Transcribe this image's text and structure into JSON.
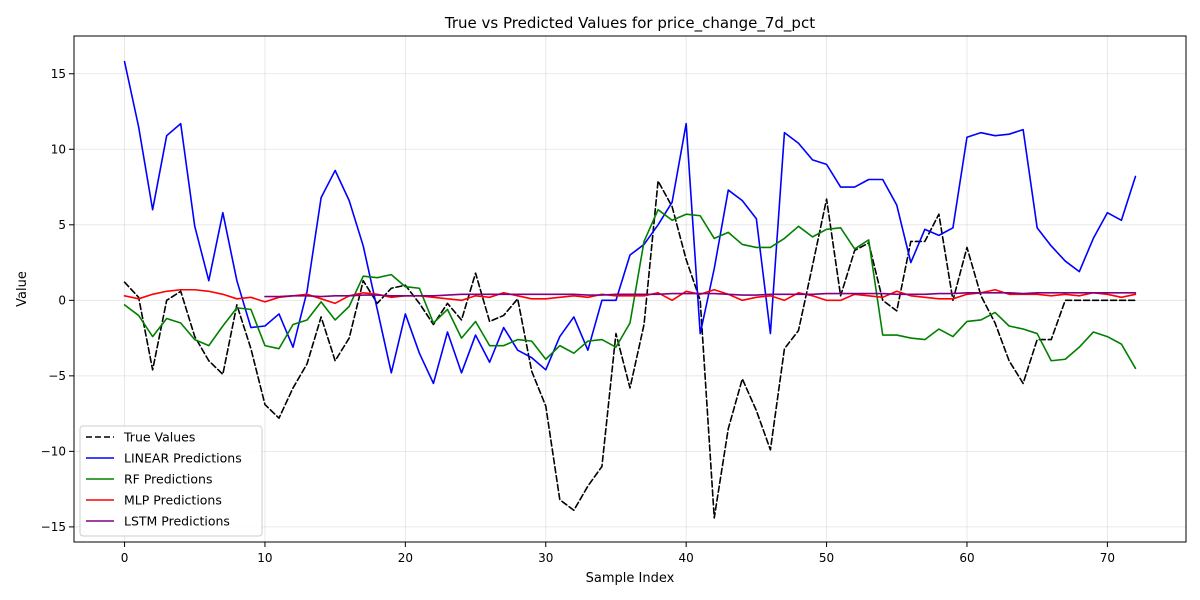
{
  "chart_data": {
    "type": "line",
    "title": "True vs Predicted Values for price_change_7d_pct",
    "xlabel": "Sample Index",
    "ylabel": "Value",
    "xlim": [
      -3.6,
      75.6
    ],
    "ylim": [
      -16.0,
      17.5
    ],
    "xticks": [
      0,
      10,
      20,
      30,
      40,
      50,
      60,
      70
    ],
    "yticks": [
      -15,
      -10,
      -5,
      0,
      5,
      10,
      15
    ],
    "grid": true,
    "legend_position": "lower-left",
    "series": [
      {
        "name": "True Values",
        "color": "#000000",
        "dashed": true,
        "x_start": 0,
        "values": [
          1.2,
          0.2,
          -4.6,
          0.0,
          0.6,
          -2.4,
          -4.0,
          -4.9,
          -0.3,
          -3.2,
          -6.9,
          -7.8,
          -5.8,
          -4.2,
          -1.1,
          -4.0,
          -2.5,
          1.3,
          -0.2,
          0.8,
          1.0,
          -0.2,
          -1.6,
          -0.2,
          -1.3,
          1.8,
          -1.4,
          -1.0,
          0.1,
          -4.7,
          -7.0,
          -13.2,
          -13.9,
          -12.3,
          -11.0,
          -2.2,
          -5.8,
          -1.6,
          7.9,
          6.2,
          2.7,
          0.0,
          -14.4,
          -8.5,
          -5.2,
          -7.3,
          -9.9,
          -3.2,
          -2.0,
          2.3,
          6.7,
          0.3,
          3.3,
          3.8,
          0.0,
          -0.7,
          3.9,
          3.9,
          5.7,
          0.0,
          3.5,
          0.3,
          -1.5,
          -4.0,
          -5.5,
          -2.6,
          -2.6,
          0.0,
          0.0,
          0.0,
          0.0,
          0.0,
          0.0
        ]
      },
      {
        "name": "LINEAR Predictions",
        "color": "#0000ff",
        "dashed": false,
        "x_start": 0,
        "values": [
          15.8,
          11.5,
          6.0,
          10.9,
          11.7,
          4.9,
          1.3,
          5.8,
          1.3,
          -1.8,
          -1.7,
          -0.9,
          -3.1,
          0.6,
          6.8,
          8.6,
          6.6,
          3.6,
          -0.6,
          -4.8,
          -0.9,
          -3.5,
          -5.5,
          -2.1,
          -4.8,
          -2.3,
          -4.1,
          -1.8,
          -3.3,
          -3.8,
          -4.6,
          -2.4,
          -1.1,
          -3.3,
          0.0,
          0.0,
          3.0,
          3.7,
          5.0,
          6.5,
          11.7,
          -2.2,
          2.1,
          7.3,
          6.6,
          5.4,
          -2.2,
          11.1,
          10.4,
          9.3,
          9.0,
          7.5,
          7.5,
          8.0,
          8.0,
          6.3,
          2.5,
          4.7,
          4.3,
          4.8,
          10.8,
          11.1,
          10.9,
          11.0,
          11.3,
          4.8,
          3.6,
          2.6,
          1.9,
          4.1,
          5.8,
          5.3,
          8.2
        ]
      },
      {
        "name": "RF Predictions",
        "color": "#008000",
        "dashed": false,
        "x_start": 0,
        "values": [
          -0.3,
          -1.0,
          -2.4,
          -1.2,
          -1.5,
          -2.6,
          -3.0,
          -1.7,
          -0.5,
          -0.6,
          -3.0,
          -3.2,
          -1.6,
          -1.3,
          -0.1,
          -1.3,
          -0.4,
          1.6,
          1.5,
          1.7,
          0.9,
          0.8,
          -1.5,
          -0.6,
          -2.5,
          -1.4,
          -3.0,
          -3.0,
          -2.6,
          -2.7,
          -3.9,
          -3.0,
          -3.5,
          -2.7,
          -2.6,
          -3.1,
          -1.5,
          3.9,
          6.0,
          5.3,
          5.7,
          5.6,
          4.1,
          4.5,
          3.7,
          3.5,
          3.5,
          4.1,
          4.9,
          4.2,
          4.7,
          4.8,
          3.4,
          4.0,
          -2.3,
          -2.3,
          -2.5,
          -2.6,
          -1.9,
          -2.4,
          -1.4,
          -1.3,
          -0.8,
          -1.7,
          -1.9,
          -2.2,
          -4.0,
          -3.9,
          -3.1,
          -2.1,
          -2.4,
          -2.9,
          -4.5
        ]
      },
      {
        "name": "MLP Predictions",
        "color": "#ff0000",
        "dashed": false,
        "x_start": 0,
        "values": [
          0.3,
          0.1,
          0.4,
          0.6,
          0.7,
          0.7,
          0.6,
          0.4,
          0.1,
          0.2,
          -0.1,
          0.2,
          0.3,
          0.4,
          0.1,
          -0.2,
          0.3,
          0.5,
          0.4,
          0.2,
          0.3,
          0.3,
          0.2,
          0.1,
          0.0,
          0.3,
          0.2,
          0.5,
          0.3,
          0.1,
          0.1,
          0.2,
          0.3,
          0.2,
          0.4,
          0.3,
          0.3,
          0.3,
          0.5,
          0.0,
          0.6,
          0.4,
          0.7,
          0.4,
          0.0,
          0.2,
          0.3,
          0.0,
          0.5,
          0.3,
          0.0,
          0.0,
          0.4,
          0.3,
          0.2,
          0.6,
          0.3,
          0.2,
          0.1,
          0.1,
          0.4,
          0.5,
          0.7,
          0.4,
          0.4,
          0.4,
          0.3,
          0.4,
          0.3,
          0.5,
          0.4,
          0.2,
          0.4
        ]
      },
      {
        "name": "LSTM Predictions",
        "color": "#800080",
        "dashed": false,
        "x_start": 10,
        "values": [
          0.25,
          0.25,
          0.3,
          0.3,
          0.25,
          0.3,
          0.3,
          0.35,
          0.35,
          0.3,
          0.3,
          0.3,
          0.3,
          0.35,
          0.4,
          0.4,
          0.4,
          0.4,
          0.4,
          0.4,
          0.4,
          0.4,
          0.4,
          0.35,
          0.35,
          0.4,
          0.4,
          0.4,
          0.4,
          0.45,
          0.45,
          0.45,
          0.45,
          0.4,
          0.35,
          0.35,
          0.4,
          0.4,
          0.4,
          0.4,
          0.45,
          0.45,
          0.45,
          0.45,
          0.45,
          0.4,
          0.4,
          0.4,
          0.45,
          0.45,
          0.5,
          0.5,
          0.5,
          0.5,
          0.45,
          0.5,
          0.5,
          0.5,
          0.5,
          0.5,
          0.5,
          0.5,
          0.5
        ]
      }
    ]
  }
}
